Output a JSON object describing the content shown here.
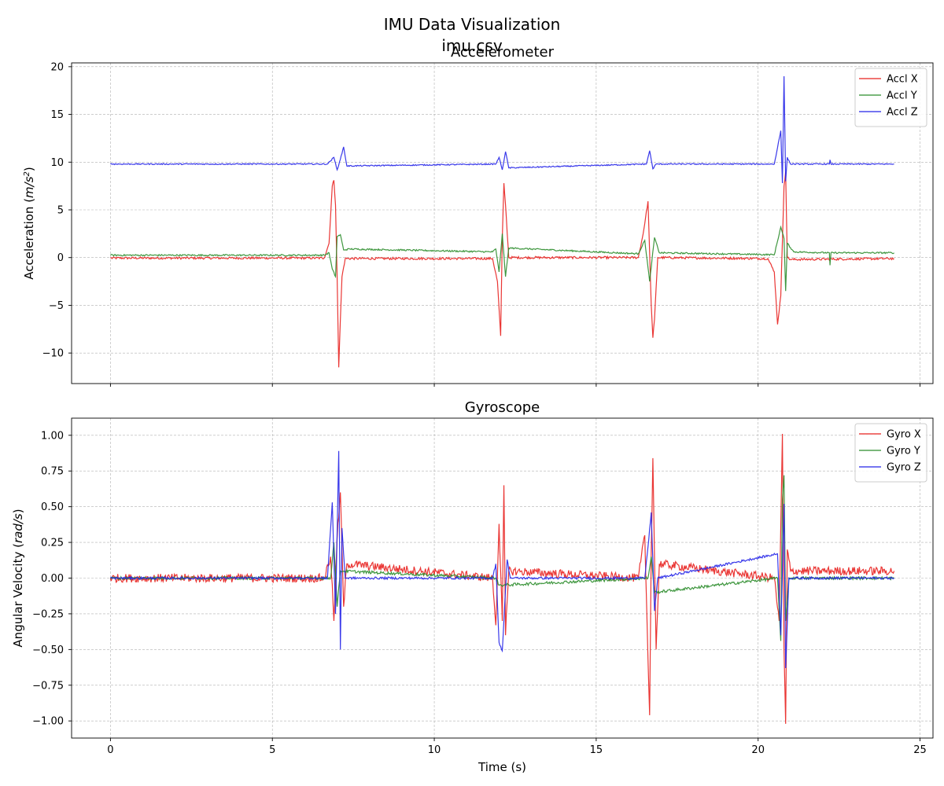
{
  "figure": {
    "title": "IMU Data Visualization",
    "subtitle": "imu.csv"
  },
  "chart_data": [
    {
      "type": "line",
      "title": "Accelerometer",
      "xlabel": "",
      "ylabel": "Acceleration (m/s²)",
      "ylabel_main": "Acceleration (",
      "ylabel_italic": "m/s",
      "ylabel_sup": "2",
      "ylabel_close": ")",
      "xlim": [
        -1.2,
        25.4
      ],
      "ylim": [
        -13.2,
        20.4
      ],
      "xticks": [
        0,
        5,
        10,
        15,
        20,
        25
      ],
      "yticks": [
        -10,
        -5,
        0,
        5,
        10,
        15,
        20
      ],
      "yticklabels": [
        "−10",
        "−5",
        "0",
        "5",
        "10",
        "15",
        "20"
      ],
      "show_xticklabels": false,
      "grid": true,
      "legend_position": "top-right",
      "series": [
        {
          "name": "Accl X",
          "color": "#e8201e",
          "baseline": -0.05,
          "noise": 0.12,
          "points": [
            [
              0,
              -0.05
            ],
            [
              6.6,
              -0.05
            ],
            [
              6.75,
              1.5
            ],
            [
              6.85,
              7.5
            ],
            [
              6.9,
              8.1
            ],
            [
              6.95,
              5.5
            ],
            [
              7.0,
              -2
            ],
            [
              7.05,
              -11.5
            ],
            [
              7.1,
              -6.5
            ],
            [
              7.15,
              -2
            ],
            [
              7.25,
              -0.1
            ],
            [
              11.8,
              -0.1
            ],
            [
              11.95,
              -2.5
            ],
            [
              12.05,
              -8.2
            ],
            [
              12.1,
              2
            ],
            [
              12.15,
              7.8
            ],
            [
              12.2,
              5.5
            ],
            [
              12.3,
              0
            ],
            [
              16.3,
              0
            ],
            [
              16.45,
              2.5
            ],
            [
              16.6,
              5.9
            ],
            [
              16.7,
              -5
            ],
            [
              16.75,
              -8.4
            ],
            [
              16.8,
              -6.5
            ],
            [
              16.9,
              0
            ],
            [
              20.3,
              -0.1
            ],
            [
              20.5,
              -1.5
            ],
            [
              20.6,
              -7
            ],
            [
              20.7,
              -4
            ],
            [
              20.8,
              7.5
            ],
            [
              20.85,
              9
            ],
            [
              20.9,
              0
            ],
            [
              21.0,
              -0.2
            ],
            [
              24.2,
              -0.1
            ]
          ]
        },
        {
          "name": "Accl Y",
          "color": "#2a8c2a",
          "baseline": 0.2,
          "noise": 0.08,
          "points": [
            [
              0,
              0.25
            ],
            [
              6.6,
              0.25
            ],
            [
              6.75,
              0.5
            ],
            [
              6.85,
              -1.2
            ],
            [
              6.95,
              -2
            ],
            [
              7.0,
              2.2
            ],
            [
              7.1,
              2.4
            ],
            [
              7.2,
              0.8
            ],
            [
              7.4,
              0.9
            ],
            [
              11.8,
              0.6
            ],
            [
              11.9,
              0.9
            ],
            [
              12.0,
              -1.5
            ],
            [
              12.1,
              2.5
            ],
            [
              12.2,
              -2
            ],
            [
              12.3,
              1
            ],
            [
              16.3,
              0.4
            ],
            [
              16.5,
              1.8
            ],
            [
              16.65,
              -2.5
            ],
            [
              16.8,
              2.1
            ],
            [
              16.95,
              0.5
            ],
            [
              20.5,
              0.3
            ],
            [
              20.7,
              3.2
            ],
            [
              20.8,
              2
            ],
            [
              20.85,
              -3.5
            ],
            [
              20.9,
              1.5
            ],
            [
              21.1,
              0.6
            ],
            [
              22.2,
              0.5
            ],
            [
              22.22,
              -0.8
            ],
            [
              22.25,
              0.5
            ],
            [
              24.2,
              0.5
            ]
          ]
        },
        {
          "name": "Accl Z",
          "color": "#2323e8",
          "baseline": 9.8,
          "noise": 0.06,
          "points": [
            [
              0,
              9.8
            ],
            [
              6.7,
              9.8
            ],
            [
              6.9,
              10.5
            ],
            [
              7.0,
              9.2
            ],
            [
              7.1,
              10.3
            ],
            [
              7.2,
              11.6
            ],
            [
              7.3,
              9.6
            ],
            [
              11.9,
              9.8
            ],
            [
              12.0,
              10.5
            ],
            [
              12.1,
              9.2
            ],
            [
              12.2,
              11.1
            ],
            [
              12.3,
              9.4
            ],
            [
              16.55,
              9.8
            ],
            [
              16.65,
              11.2
            ],
            [
              16.75,
              9.3
            ],
            [
              16.85,
              9.8
            ],
            [
              20.5,
              9.8
            ],
            [
              20.7,
              13.3
            ],
            [
              20.75,
              7.8
            ],
            [
              20.8,
              19
            ],
            [
              20.85,
              8
            ],
            [
              20.9,
              10.5
            ],
            [
              21.0,
              9.8
            ],
            [
              22.2,
              9.8
            ],
            [
              22.22,
              10.2
            ],
            [
              22.25,
              9.8
            ],
            [
              24.2,
              9.8
            ]
          ]
        }
      ]
    },
    {
      "type": "line",
      "title": "Gyroscope",
      "xlabel": "Time (s)",
      "ylabel": "Angular Velocity (rad/s)",
      "ylabel_main": "Angular Velocity (",
      "ylabel_italic": "rad/s",
      "ylabel_sup": "",
      "ylabel_close": ")",
      "xlim": [
        -1.2,
        25.4
      ],
      "ylim": [
        -1.12,
        1.12
      ],
      "xticks": [
        0,
        5,
        10,
        15,
        20,
        25
      ],
      "yticks": [
        -1.0,
        -0.75,
        -0.5,
        -0.25,
        0.0,
        0.25,
        0.5,
        0.75,
        1.0
      ],
      "yticklabels": [
        "−1.00",
        "−0.75",
        "−0.50",
        "−0.25",
        "0.00",
        "0.25",
        "0.50",
        "0.75",
        "1.00"
      ],
      "show_xticklabels": true,
      "grid": true,
      "legend_position": "top-right",
      "series": [
        {
          "name": "Gyro X",
          "color": "#e8201e",
          "baseline": 0.0,
          "noise": 0.03,
          "points": [
            [
              0,
              0
            ],
            [
              6.6,
              0
            ],
            [
              6.8,
              0.15
            ],
            [
              6.9,
              -0.3
            ],
            [
              7.0,
              0.28
            ],
            [
              7.1,
              0.6
            ],
            [
              7.2,
              -0.2
            ],
            [
              7.3,
              0.1
            ],
            [
              11.8,
              0
            ],
            [
              11.9,
              -0.33
            ],
            [
              12.0,
              0.38
            ],
            [
              12.1,
              -0.3
            ],
            [
              12.15,
              0.65
            ],
            [
              12.2,
              -0.4
            ],
            [
              12.3,
              0.05
            ],
            [
              16.3,
              0
            ],
            [
              16.5,
              0.3
            ],
            [
              16.6,
              -0.57
            ],
            [
              16.65,
              -0.96
            ],
            [
              16.7,
              0.2
            ],
            [
              16.75,
              0.84
            ],
            [
              16.85,
              -0.5
            ],
            [
              16.95,
              0.1
            ],
            [
              20.5,
              0
            ],
            [
              20.65,
              -0.3
            ],
            [
              20.75,
              1.01
            ],
            [
              20.8,
              -0.5
            ],
            [
              20.85,
              -1.02
            ],
            [
              20.9,
              0.2
            ],
            [
              21.0,
              0.05
            ],
            [
              24.2,
              0.05
            ]
          ]
        },
        {
          "name": "Gyro Y",
          "color": "#2a8c2a",
          "baseline": 0.0,
          "noise": 0.01,
          "points": [
            [
              0,
              0
            ],
            [
              6.8,
              0
            ],
            [
              6.9,
              0.25
            ],
            [
              7.0,
              -0.2
            ],
            [
              7.1,
              0.05
            ],
            [
              11.9,
              0
            ],
            [
              12.0,
              -0.05
            ],
            [
              16.6,
              0
            ],
            [
              16.7,
              0.15
            ],
            [
              16.8,
              -0.1
            ],
            [
              20.6,
              0
            ],
            [
              20.7,
              -0.44
            ],
            [
              20.75,
              0.55
            ],
            [
              20.8,
              0.72
            ],
            [
              20.85,
              -0.3
            ],
            [
              20.95,
              0
            ],
            [
              24.2,
              0
            ]
          ]
        },
        {
          "name": "Gyro Z",
          "color": "#2323e8",
          "baseline": 0.0,
          "noise": 0.008,
          "points": [
            [
              0,
              0
            ],
            [
              6.7,
              0
            ],
            [
              6.85,
              0.53
            ],
            [
              6.95,
              -0.25
            ],
            [
              7.05,
              0.89
            ],
            [
              7.1,
              -0.5
            ],
            [
              7.15,
              0.35
            ],
            [
              7.25,
              0
            ],
            [
              11.8,
              0
            ],
            [
              11.9,
              0.1
            ],
            [
              12.0,
              -0.45
            ],
            [
              12.1,
              -0.51
            ],
            [
              12.25,
              0.13
            ],
            [
              12.35,
              0
            ],
            [
              16.5,
              0
            ],
            [
              16.6,
              0.22
            ],
            [
              16.7,
              0.46
            ],
            [
              16.8,
              -0.23
            ],
            [
              16.9,
              0
            ],
            [
              20.6,
              0.17
            ],
            [
              20.7,
              -0.4
            ],
            [
              20.8,
              0.52
            ],
            [
              20.85,
              -0.63
            ],
            [
              20.95,
              0
            ],
            [
              24.2,
              0
            ]
          ]
        }
      ]
    }
  ]
}
